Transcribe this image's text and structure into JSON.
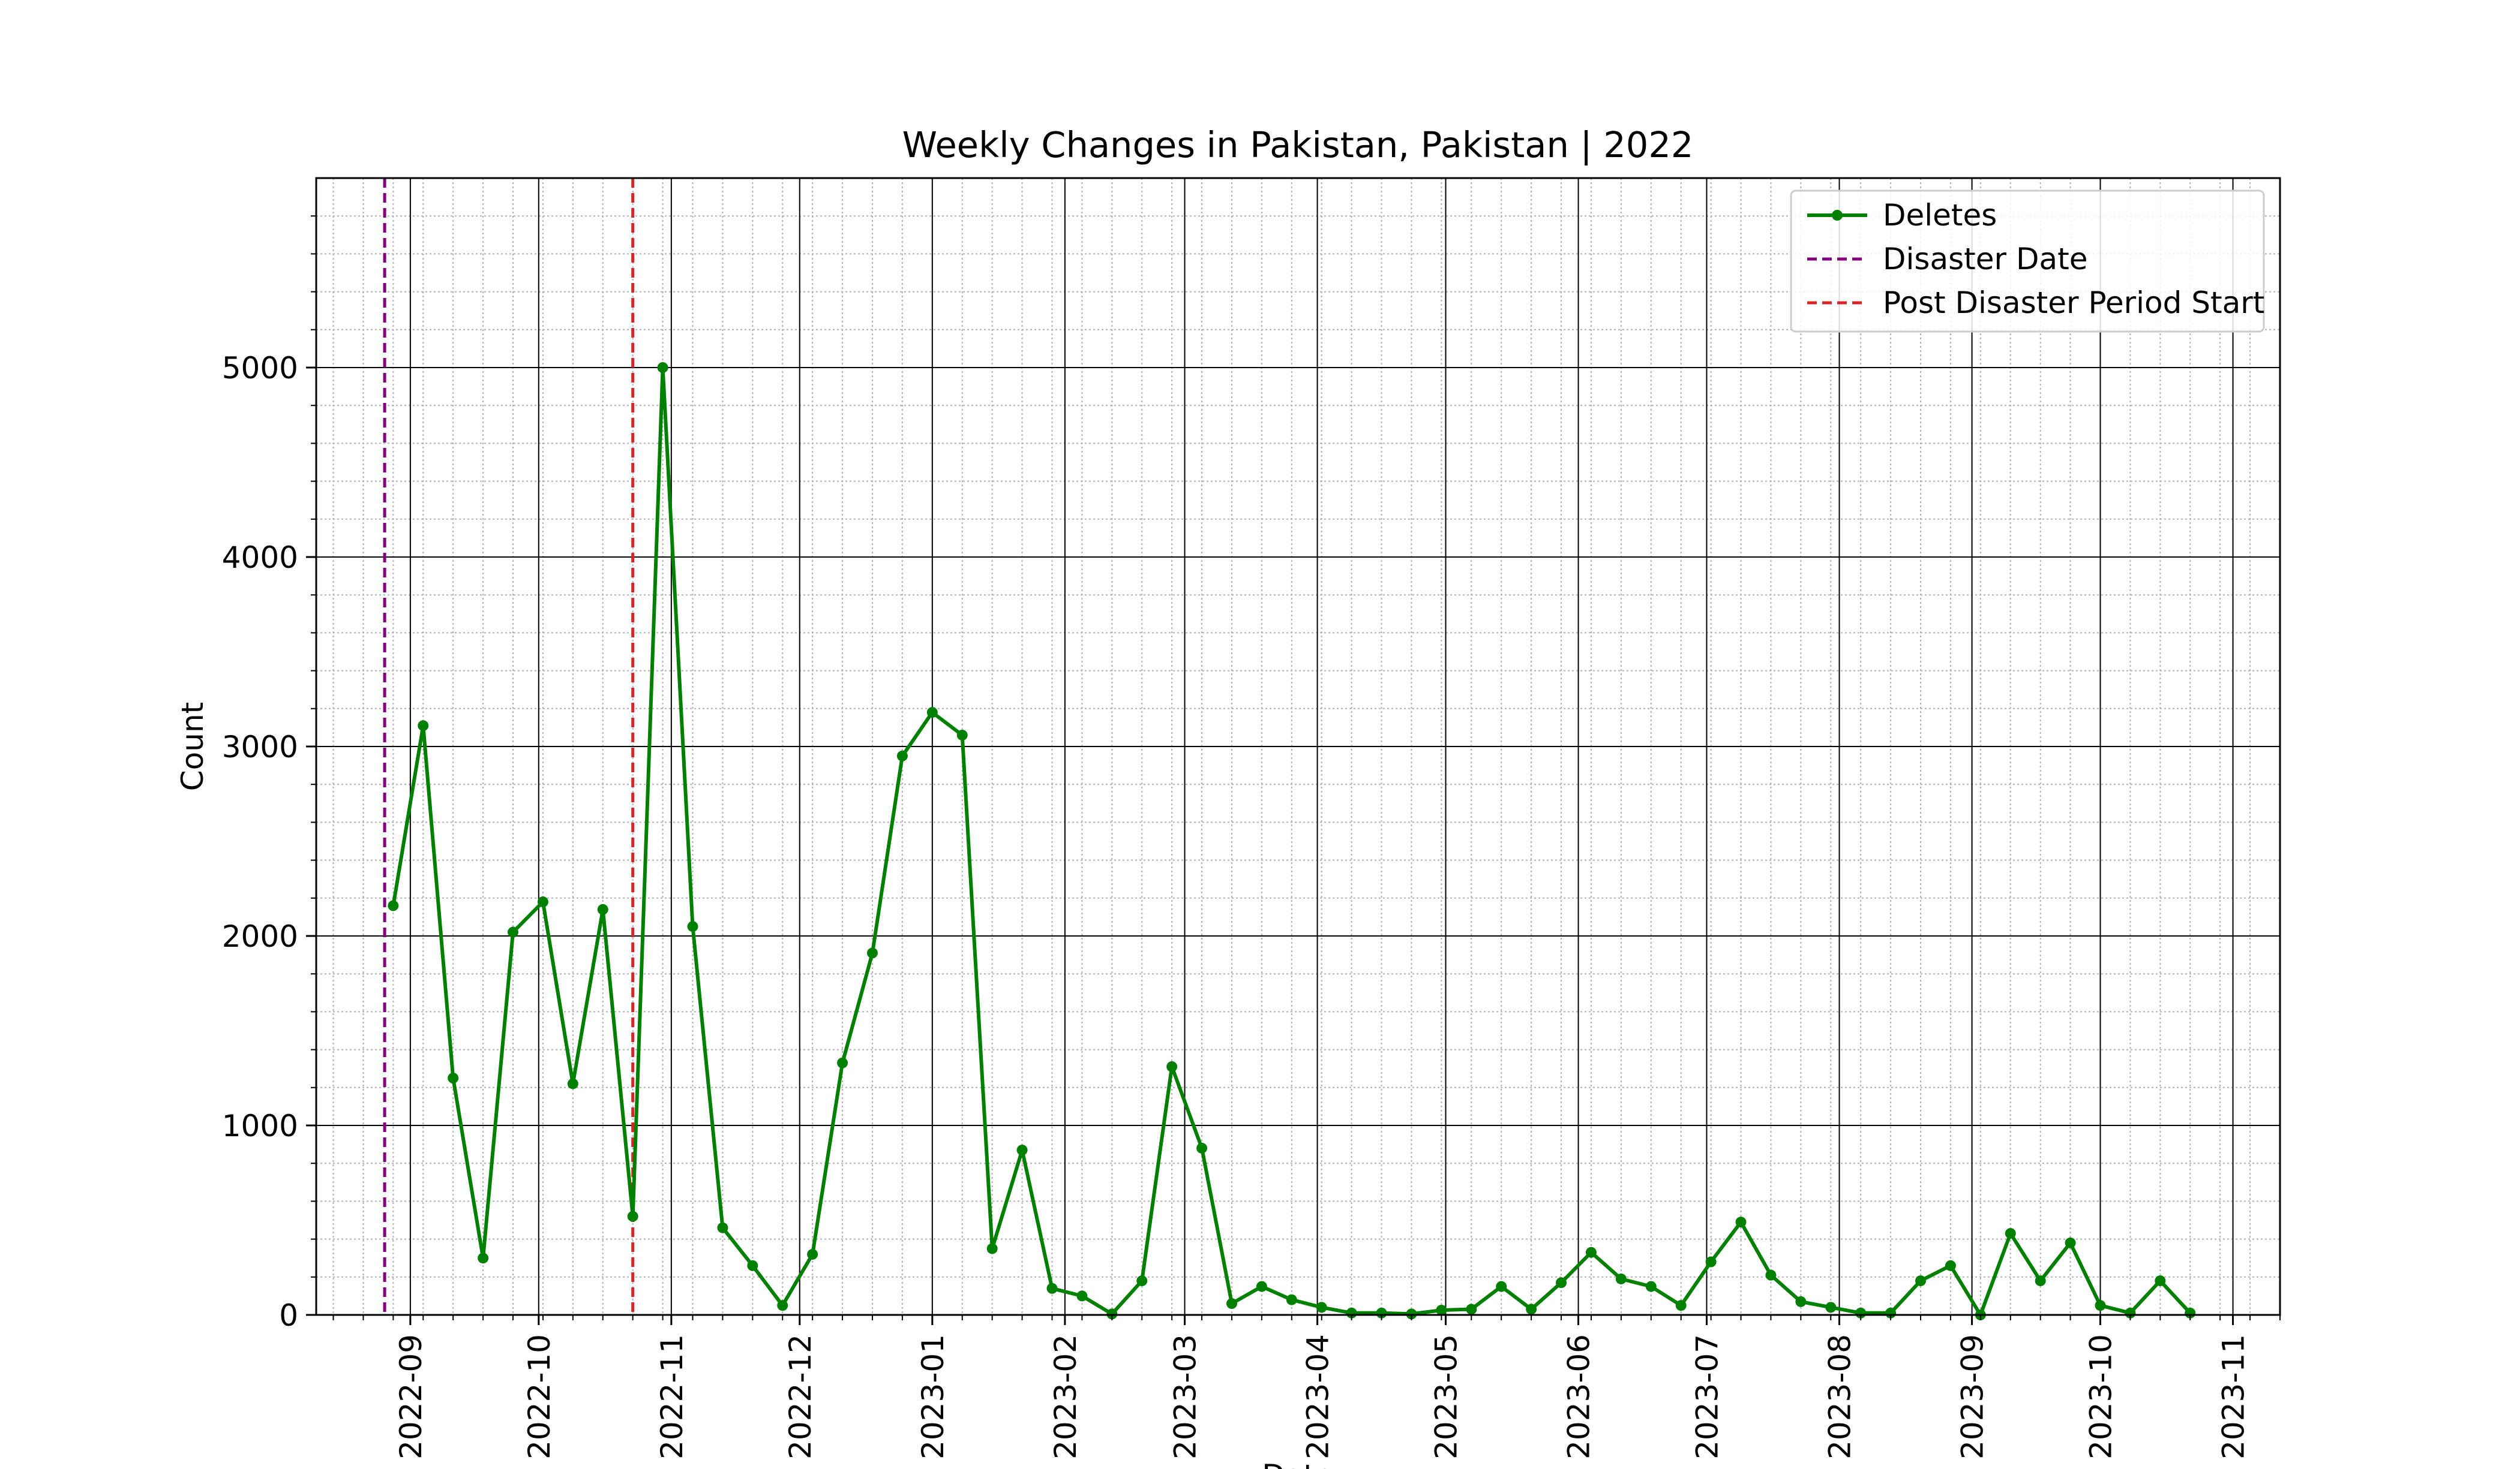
{
  "chart_data": {
    "type": "line",
    "title": "Weekly Changes in Pakistan, Pakistan | 2022",
    "xlabel": "Date",
    "ylabel": "Count",
    "x_axis_type": "date",
    "xlim": [
      "2022-08-10",
      "2023-11-12"
    ],
    "ylim": [
      0,
      6000
    ],
    "yticks": [
      0,
      1000,
      2000,
      3000,
      4000,
      5000
    ],
    "xticks": [
      "2022-09",
      "2022-10",
      "2022-11",
      "2022-12",
      "2023-01",
      "2023-02",
      "2023-03",
      "2023-04",
      "2023-05",
      "2023-06",
      "2023-07",
      "2023-08",
      "2023-09",
      "2023-10",
      "2023-11"
    ],
    "grid": true,
    "minor_grid": true,
    "legend_position": "top-right",
    "series": [
      {
        "name": "Deletes",
        "color": "#008000",
        "marker": "circle",
        "x": [
          "2022-08-28",
          "2022-09-04",
          "2022-09-11",
          "2022-09-18",
          "2022-09-25",
          "2022-10-02",
          "2022-10-09",
          "2022-10-16",
          "2022-10-23",
          "2022-10-30",
          "2022-11-06",
          "2022-11-13",
          "2022-11-20",
          "2022-11-27",
          "2022-12-04",
          "2022-12-11",
          "2022-12-18",
          "2022-12-25",
          "2023-01-01",
          "2023-01-08",
          "2023-01-15",
          "2023-01-22",
          "2023-01-29",
          "2023-02-05",
          "2023-02-12",
          "2023-02-19",
          "2023-02-26",
          "2023-03-05",
          "2023-03-12",
          "2023-03-19",
          "2023-03-26",
          "2023-04-02",
          "2023-04-09",
          "2023-04-16",
          "2023-04-23",
          "2023-04-30",
          "2023-05-07",
          "2023-05-14",
          "2023-05-21",
          "2023-05-28",
          "2023-06-04",
          "2023-06-11",
          "2023-06-18",
          "2023-06-25",
          "2023-07-02",
          "2023-07-09",
          "2023-07-16",
          "2023-07-23",
          "2023-07-30",
          "2023-08-06",
          "2023-08-13",
          "2023-08-20",
          "2023-08-27",
          "2023-09-03",
          "2023-09-10",
          "2023-09-17",
          "2023-09-24",
          "2023-10-01",
          "2023-10-08",
          "2023-10-15",
          "2023-10-22"
        ],
        "values": [
          2160,
          3110,
          1250,
          300,
          2020,
          2180,
          1220,
          2140,
          520,
          5000,
          2050,
          460,
          260,
          50,
          320,
          1330,
          1910,
          2950,
          3180,
          3060,
          350,
          870,
          140,
          100,
          5,
          180,
          1310,
          880,
          60,
          150,
          80,
          40,
          10,
          10,
          5,
          25,
          30,
          150,
          30,
          170,
          330,
          190,
          150,
          50,
          280,
          490,
          210,
          70,
          40,
          10,
          10,
          180,
          260,
          0,
          430,
          180,
          380,
          50,
          10,
          180,
          10
        ]
      }
    ],
    "vlines": [
      {
        "name": "Disaster Date",
        "x": "2022-08-26",
        "color": "#800080",
        "style": "dashed"
      },
      {
        "name": "Post Disaster Period Start",
        "x": "2022-10-23",
        "color": "#d62728",
        "style": "dashed"
      }
    ]
  }
}
